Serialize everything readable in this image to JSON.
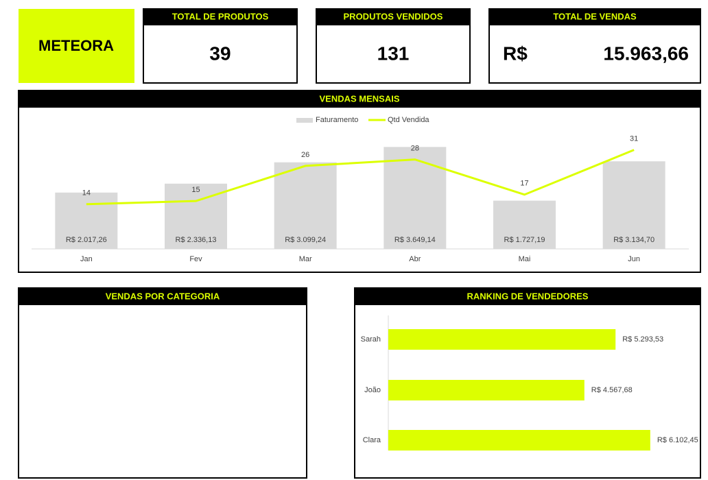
{
  "header": {
    "brand": "METEORA",
    "kpis": [
      {
        "title": "TOTAL DE PRODUTOS",
        "value": "39"
      },
      {
        "title": "PRODUTOS VENDIDOS",
        "value": "131"
      },
      {
        "title": "TOTAL DE VENDAS",
        "currency": "R$",
        "value": "15.963,66"
      }
    ]
  },
  "panels": {
    "category_title": "VENDAS POR CATEGORIA"
  },
  "chart_data": [
    {
      "type": "bar-line",
      "title": "VENDAS MENSAIS",
      "categories": [
        "Jan",
        "Fev",
        "Mar",
        "Abr",
        "Mai",
        "Jun"
      ],
      "series": [
        {
          "name": "Faturamento",
          "color": "#d9d9d9",
          "values": [
            2017.26,
            2336.13,
            3099.24,
            3649.14,
            1727.19,
            3134.7
          ],
          "value_labels": [
            "R$ 2.017,26",
            "R$ 2.336,13",
            "R$ 3.099,24",
            "R$ 3.649,14",
            "R$ 1.727,19",
            "R$ 3.134,70"
          ]
        },
        {
          "name": "Qtd Vendida",
          "color": "#dcff00",
          "axis": "y2",
          "values": [
            14,
            15,
            26,
            28,
            17,
            31
          ]
        }
      ],
      "ylim": [
        0,
        4000
      ],
      "y2lim": [
        0,
        35
      ],
      "legend": "top"
    },
    {
      "type": "hbar",
      "title": "RANKING DE VENDEDORES",
      "categories": [
        "Sarah",
        "João",
        "Clara"
      ],
      "values": [
        5293.53,
        4567.68,
        6102.45
      ],
      "value_labels": [
        "R$ 5.293,53",
        "R$ 4.567,68",
        "R$ 6.102,45"
      ],
      "color": "#dcff00",
      "xlim": [
        0,
        7000
      ]
    }
  ]
}
